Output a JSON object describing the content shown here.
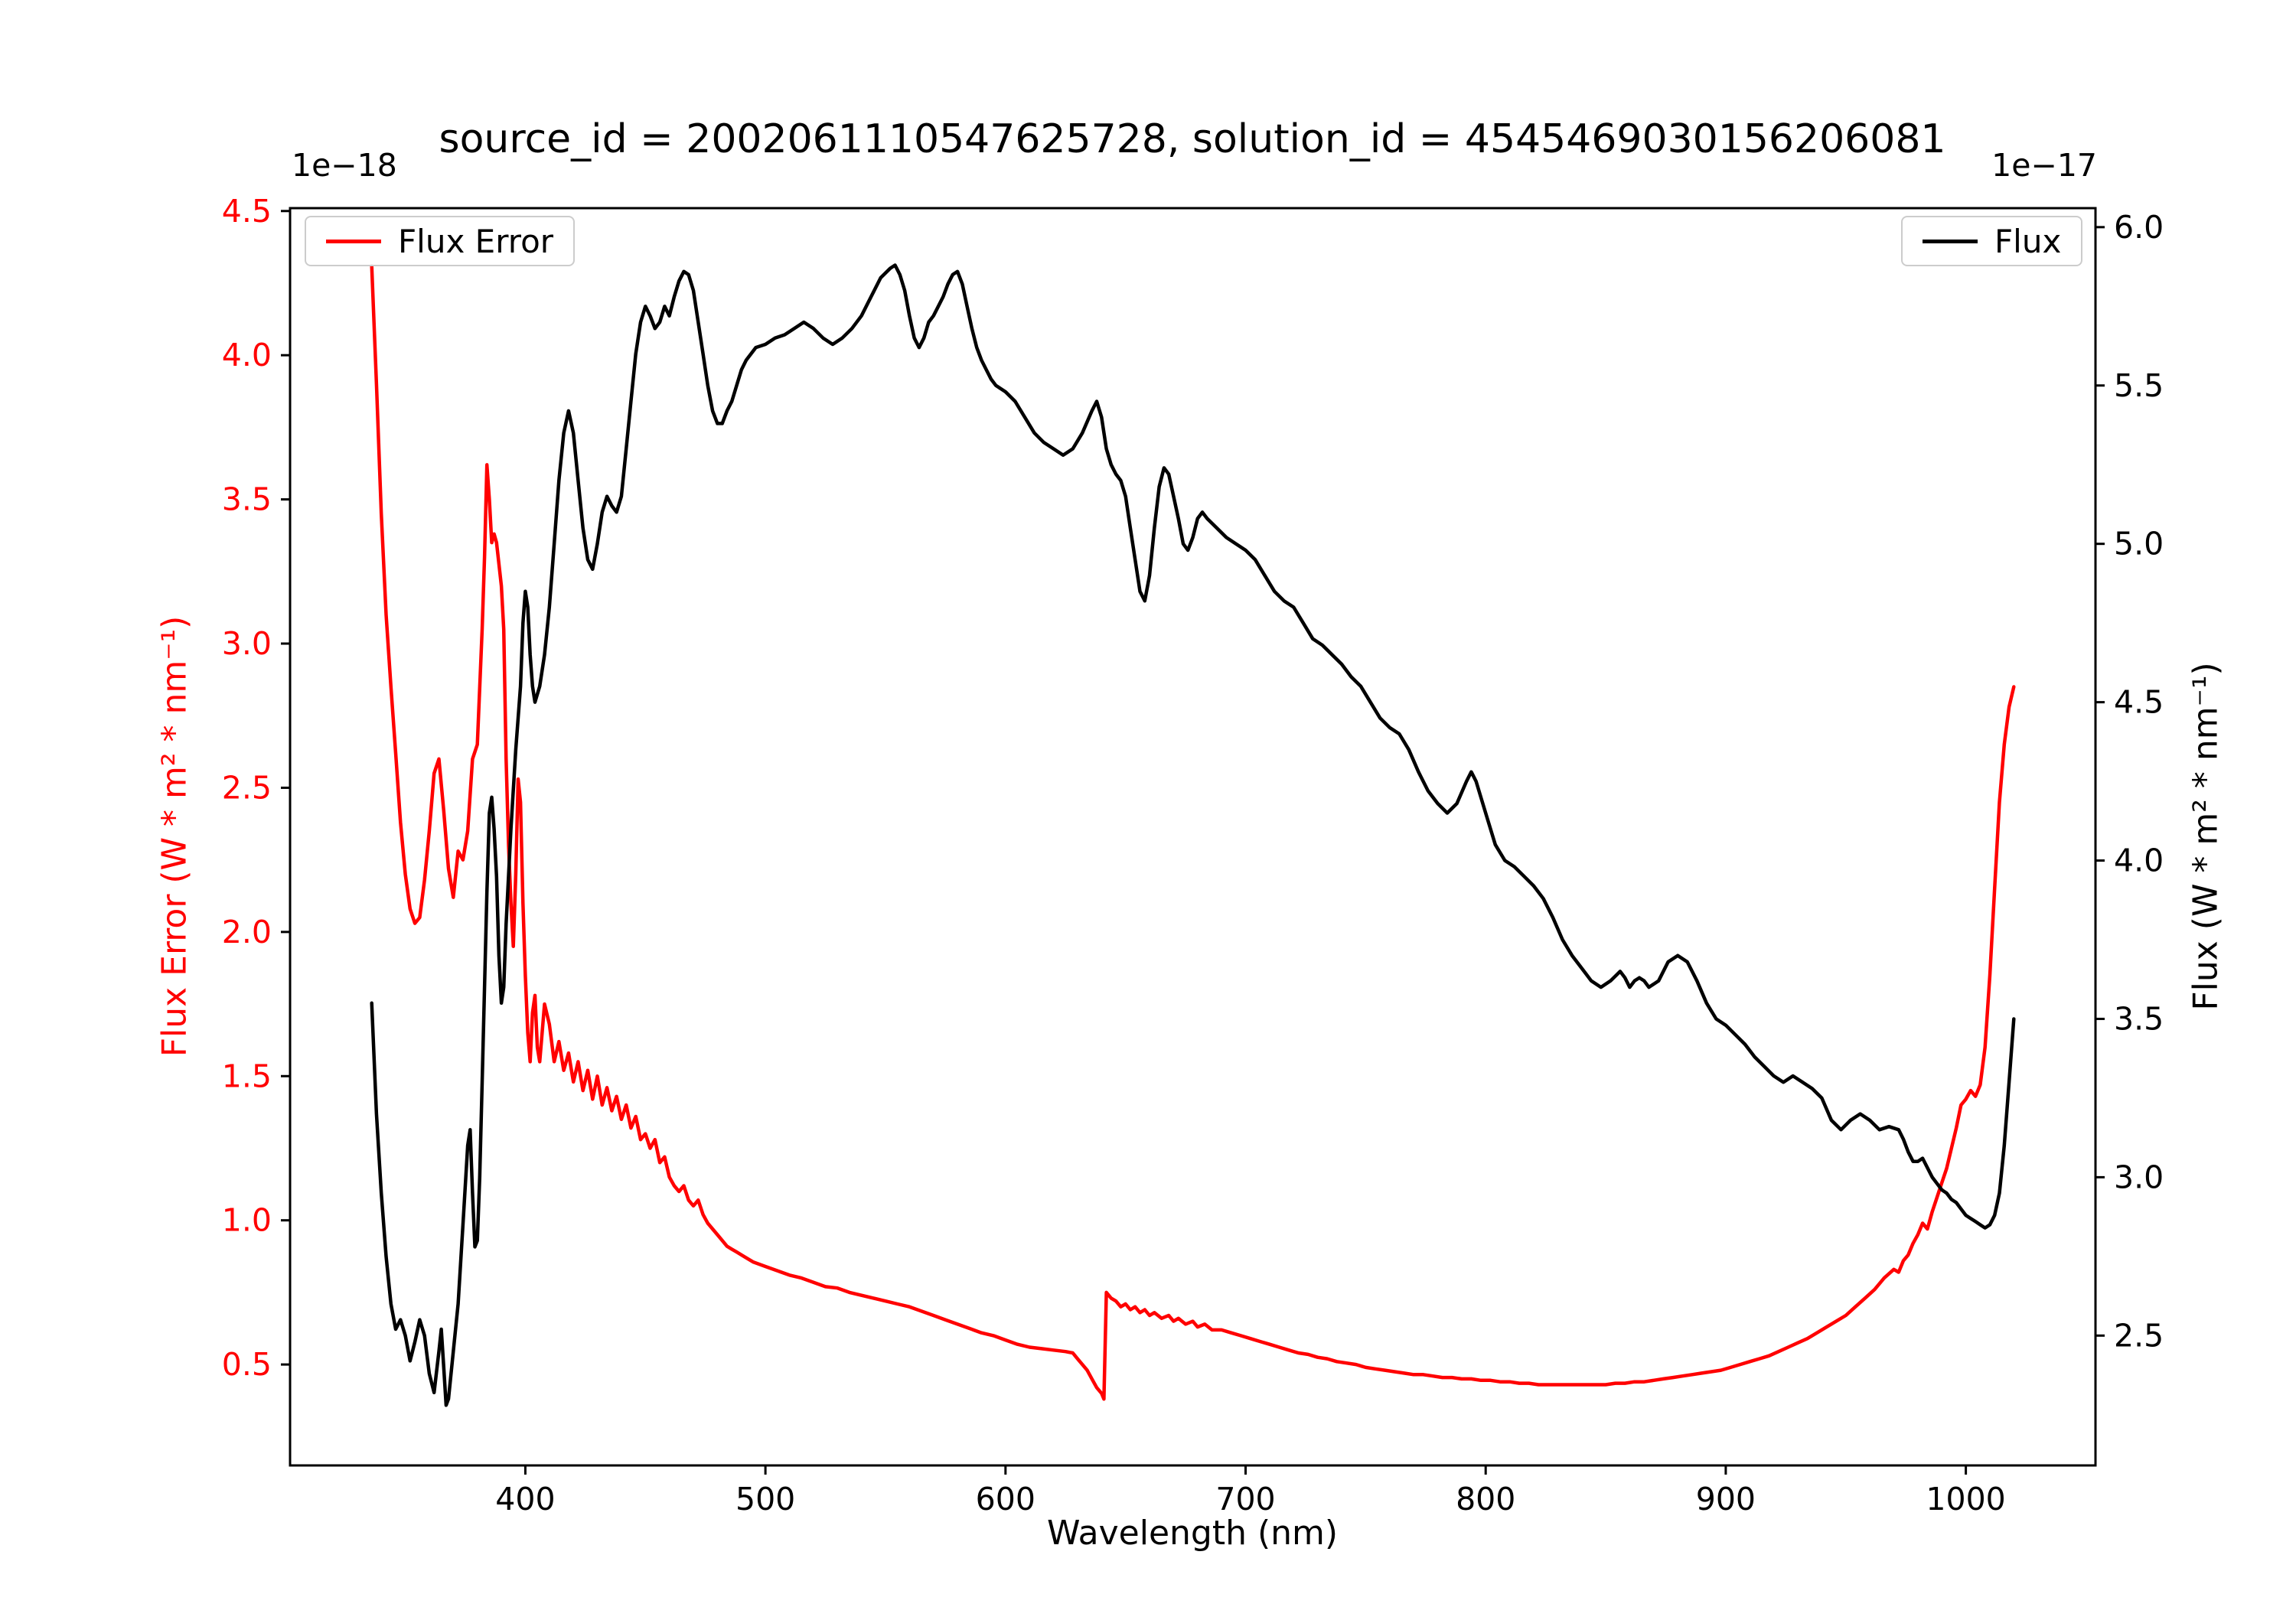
{
  "figure": {
    "title": "source_id = 2002061110547625728, solution_id = 4545469030156206081",
    "xlabel": "Wavelength (nm)",
    "left_axis_label": "Flux Error (W * m² * nm⁻¹)",
    "right_axis_label": "Flux (W * m² * nm⁻¹)",
    "left_offset_text": "1e−18",
    "right_offset_text": "1e−17",
    "legend_flux_error_label": "Flux Error",
    "legend_flux_label": "Flux",
    "colors": {
      "flux_error": "#ff0000",
      "flux": "#000000",
      "frame": "#000000",
      "legend_edge": "#cccccc"
    }
  },
  "chart_data": {
    "type": "line",
    "title": "source_id = 2002061110547625728, solution_id = 4545469030156206081",
    "xlabel": "Wavelength (nm)",
    "grid": false,
    "xlim": [
      302,
      1054
    ],
    "x_ticks": {
      "values": [
        400,
        500,
        600,
        700,
        800,
        900,
        1000
      ],
      "labels": [
        "400",
        "500",
        "600",
        "700",
        "800",
        "900",
        "1000"
      ]
    },
    "left_axis": {
      "label": "Flux Error (W * m² * nm⁻¹)",
      "scale": "1e-18",
      "color": "#ff0000",
      "lim": [
        0.15,
        4.51
      ],
      "ticks": {
        "values": [
          0.5,
          1.0,
          1.5,
          2.0,
          2.5,
          3.0,
          3.5,
          4.0,
          4.5
        ],
        "labels": [
          "0.5",
          "1.0",
          "1.5",
          "2.0",
          "2.5",
          "3.0",
          "3.5",
          "4.0",
          "4.5"
        ]
      }
    },
    "right_axis": {
      "label": "Flux (W * m² * nm⁻¹)",
      "scale": "1e-17",
      "color": "#000000",
      "lim": [
        2.09,
        6.06
      ],
      "ticks": {
        "values": [
          2.5,
          3.0,
          3.5,
          4.0,
          4.5,
          5.0,
          5.5,
          6.0
        ],
        "labels": [
          "2.5",
          "3.0",
          "3.5",
          "4.0",
          "4.5",
          "5.0",
          "5.5",
          "6.0"
        ]
      }
    },
    "series": [
      {
        "name": "Flux Error",
        "axis": "left",
        "color": "#ff0000",
        "legend_position": "upper left",
        "x": [
          336,
          338,
          340,
          342,
          344,
          346,
          348,
          350,
          352,
          354,
          356,
          358,
          360,
          362,
          364,
          366,
          368,
          370,
          372,
          374,
          376,
          378,
          380,
          382,
          383,
          384,
          385,
          386,
          387,
          388,
          390,
          391,
          392,
          393,
          394,
          395,
          396,
          397,
          398,
          399,
          400,
          401,
          402,
          403,
          404,
          405,
          406,
          408,
          410,
          412,
          414,
          416,
          418,
          420,
          422,
          424,
          426,
          428,
          430,
          432,
          434,
          436,
          438,
          440,
          442,
          444,
          446,
          448,
          450,
          452,
          454,
          456,
          458,
          460,
          462,
          464,
          466,
          468,
          470,
          472,
          474,
          476,
          478,
          480,
          482,
          484,
          486,
          488,
          490,
          492,
          495,
          500,
          505,
          510,
          515,
          520,
          525,
          530,
          535,
          540,
          545,
          550,
          555,
          560,
          565,
          570,
          575,
          580,
          585,
          590,
          595,
          600,
          605,
          610,
          615,
          620,
          625,
          628,
          630,
          632,
          634,
          636,
          638,
          640,
          641,
          642,
          644,
          646,
          648,
          650,
          652,
          654,
          656,
          658,
          660,
          662,
          665,
          668,
          670,
          672,
          675,
          678,
          680,
          683,
          686,
          690,
          694,
          698,
          702,
          706,
          710,
          714,
          718,
          722,
          726,
          730,
          734,
          738,
          742,
          746,
          750,
          754,
          758,
          762,
          766,
          770,
          774,
          778,
          782,
          786,
          790,
          794,
          798,
          802,
          806,
          810,
          814,
          818,
          822,
          826,
          830,
          834,
          838,
          842,
          846,
          850,
          854,
          858,
          862,
          866,
          870,
          874,
          878,
          882,
          886,
          890,
          894,
          898,
          902,
          906,
          910,
          914,
          918,
          922,
          926,
          930,
          934,
          938,
          942,
          946,
          950,
          954,
          958,
          962,
          966,
          970,
          972,
          974,
          976,
          978,
          980,
          982,
          984,
          986,
          988,
          990,
          992,
          994,
          996,
          998,
          1000,
          1002,
          1004,
          1006,
          1008,
          1010,
          1012,
          1014,
          1016,
          1018,
          1020
        ],
        "y": [
          4.31,
          3.9,
          3.45,
          3.1,
          2.85,
          2.62,
          2.38,
          2.2,
          2.08,
          2.03,
          2.05,
          2.18,
          2.35,
          2.55,
          2.6,
          2.42,
          2.22,
          2.12,
          2.28,
          2.25,
          2.35,
          2.6,
          2.65,
          3.05,
          3.3,
          3.62,
          3.5,
          3.35,
          3.38,
          3.35,
          3.2,
          3.05,
          2.6,
          2.3,
          2.1,
          1.95,
          2.2,
          2.53,
          2.45,
          2.1,
          1.85,
          1.65,
          1.55,
          1.72,
          1.78,
          1.6,
          1.55,
          1.75,
          1.68,
          1.55,
          1.62,
          1.52,
          1.58,
          1.48,
          1.55,
          1.45,
          1.52,
          1.42,
          1.5,
          1.4,
          1.46,
          1.38,
          1.43,
          1.35,
          1.4,
          1.32,
          1.36,
          1.28,
          1.3,
          1.25,
          1.28,
          1.2,
          1.22,
          1.15,
          1.12,
          1.1,
          1.12,
          1.07,
          1.05,
          1.07,
          1.02,
          0.99,
          0.97,
          0.95,
          0.93,
          0.91,
          0.9,
          0.89,
          0.88,
          0.87,
          0.855,
          0.84,
          0.825,
          0.81,
          0.8,
          0.785,
          0.77,
          0.765,
          0.75,
          0.74,
          0.73,
          0.72,
          0.71,
          0.7,
          0.685,
          0.67,
          0.655,
          0.64,
          0.625,
          0.61,
          0.6,
          0.585,
          0.57,
          0.56,
          0.555,
          0.55,
          0.545,
          0.54,
          0.52,
          0.5,
          0.48,
          0.45,
          0.42,
          0.4,
          0.38,
          0.75,
          0.73,
          0.72,
          0.7,
          0.71,
          0.69,
          0.7,
          0.68,
          0.69,
          0.67,
          0.68,
          0.66,
          0.67,
          0.65,
          0.66,
          0.64,
          0.65,
          0.63,
          0.64,
          0.62,
          0.62,
          0.61,
          0.6,
          0.59,
          0.58,
          0.57,
          0.56,
          0.55,
          0.54,
          0.535,
          0.525,
          0.52,
          0.51,
          0.505,
          0.5,
          0.49,
          0.485,
          0.48,
          0.475,
          0.47,
          0.465,
          0.465,
          0.46,
          0.455,
          0.455,
          0.45,
          0.45,
          0.445,
          0.445,
          0.44,
          0.44,
          0.435,
          0.435,
          0.43,
          0.43,
          0.43,
          0.43,
          0.43,
          0.43,
          0.43,
          0.43,
          0.435,
          0.435,
          0.44,
          0.44,
          0.445,
          0.45,
          0.455,
          0.46,
          0.465,
          0.47,
          0.475,
          0.48,
          0.49,
          0.5,
          0.51,
          0.52,
          0.53,
          0.545,
          0.56,
          0.575,
          0.59,
          0.61,
          0.63,
          0.65,
          0.67,
          0.7,
          0.73,
          0.76,
          0.8,
          0.83,
          0.82,
          0.86,
          0.88,
          0.92,
          0.95,
          0.99,
          0.97,
          1.03,
          1.08,
          1.13,
          1.18,
          1.25,
          1.32,
          1.4,
          1.42,
          1.45,
          1.43,
          1.47,
          1.6,
          1.85,
          2.15,
          2.45,
          2.65,
          2.78,
          2.85
        ]
      },
      {
        "name": "Flux",
        "axis": "right",
        "color": "#000000",
        "legend_position": "upper right",
        "x": [
          336,
          338,
          340,
          342,
          344,
          346,
          348,
          350,
          352,
          354,
          356,
          358,
          360,
          362,
          364,
          365,
          366,
          367,
          368,
          370,
          372,
          374,
          376,
          377,
          378,
          379,
          380,
          381,
          382,
          383,
          384,
          385,
          386,
          387,
          388,
          389,
          390,
          391,
          392,
          394,
          396,
          398,
          399,
          400,
          401,
          402,
          403,
          404,
          406,
          408,
          410,
          412,
          414,
          416,
          418,
          420,
          422,
          424,
          426,
          428,
          430,
          432,
          434,
          436,
          438,
          440,
          442,
          444,
          446,
          448,
          450,
          452,
          454,
          456,
          458,
          460,
          462,
          464,
          466,
          468,
          470,
          472,
          474,
          476,
          478,
          480,
          482,
          484,
          486,
          488,
          490,
          492,
          494,
          496,
          500,
          504,
          508,
          512,
          516,
          520,
          524,
          528,
          532,
          536,
          540,
          544,
          548,
          552,
          554,
          556,
          558,
          560,
          562,
          564,
          566,
          568,
          570,
          572,
          574,
          576,
          578,
          580,
          582,
          584,
          586,
          588,
          590,
          592,
          594,
          596,
          600,
          604,
          608,
          612,
          616,
          620,
          624,
          628,
          632,
          636,
          638,
          640,
          642,
          644,
          646,
          648,
          650,
          652,
          654,
          656,
          658,
          660,
          662,
          664,
          666,
          668,
          670,
          672,
          674,
          676,
          678,
          680,
          682,
          684,
          688,
          692,
          696,
          700,
          704,
          708,
          712,
          716,
          720,
          724,
          728,
          732,
          736,
          740,
          744,
          748,
          752,
          756,
          760,
          764,
          768,
          772,
          776,
          780,
          784,
          788,
          792,
          794,
          796,
          800,
          804,
          808,
          812,
          816,
          820,
          824,
          828,
          832,
          836,
          840,
          844,
          848,
          852,
          856,
          858,
          860,
          862,
          864,
          866,
          868,
          872,
          876,
          880,
          884,
          888,
          892,
          896,
          900,
          904,
          908,
          912,
          916,
          920,
          924,
          928,
          932,
          936,
          940,
          944,
          948,
          952,
          956,
          960,
          964,
          968,
          972,
          974,
          976,
          978,
          980,
          982,
          984,
          986,
          988,
          990,
          992,
          994,
          996,
          998,
          1000,
          1002,
          1004,
          1006,
          1008,
          1010,
          1012,
          1014,
          1016,
          1018,
          1020
        ],
        "y": [
          3.55,
          3.2,
          2.95,
          2.75,
          2.6,
          2.52,
          2.55,
          2.5,
          2.42,
          2.48,
          2.55,
          2.5,
          2.38,
          2.32,
          2.45,
          2.52,
          2.4,
          2.28,
          2.3,
          2.45,
          2.6,
          2.85,
          3.1,
          3.15,
          2.95,
          2.78,
          2.8,
          3.0,
          3.3,
          3.6,
          3.9,
          4.15,
          4.2,
          4.1,
          3.95,
          3.7,
          3.55,
          3.6,
          3.8,
          4.1,
          4.35,
          4.55,
          4.75,
          4.85,
          4.8,
          4.65,
          4.55,
          4.5,
          4.55,
          4.65,
          4.8,
          5.0,
          5.2,
          5.35,
          5.42,
          5.35,
          5.2,
          5.05,
          4.95,
          4.92,
          5.0,
          5.1,
          5.15,
          5.12,
          5.1,
          5.15,
          5.3,
          5.45,
          5.6,
          5.7,
          5.75,
          5.72,
          5.68,
          5.7,
          5.75,
          5.72,
          5.78,
          5.83,
          5.86,
          5.85,
          5.8,
          5.7,
          5.6,
          5.5,
          5.42,
          5.38,
          5.38,
          5.42,
          5.45,
          5.5,
          5.55,
          5.58,
          5.6,
          5.62,
          5.63,
          5.65,
          5.66,
          5.68,
          5.7,
          5.68,
          5.65,
          5.63,
          5.65,
          5.68,
          5.72,
          5.78,
          5.84,
          5.87,
          5.88,
          5.85,
          5.8,
          5.72,
          5.65,
          5.62,
          5.65,
          5.7,
          5.72,
          5.75,
          5.78,
          5.82,
          5.85,
          5.86,
          5.82,
          5.75,
          5.68,
          5.62,
          5.58,
          5.55,
          5.52,
          5.5,
          5.48,
          5.45,
          5.4,
          5.35,
          5.32,
          5.3,
          5.28,
          5.3,
          5.35,
          5.42,
          5.45,
          5.4,
          5.3,
          5.25,
          5.22,
          5.2,
          5.15,
          5.05,
          4.95,
          4.85,
          4.82,
          4.9,
          5.05,
          5.18,
          5.24,
          5.22,
          5.15,
          5.08,
          5.0,
          4.98,
          5.02,
          5.08,
          5.1,
          5.08,
          5.05,
          5.02,
          5.0,
          4.98,
          4.95,
          4.9,
          4.85,
          4.82,
          4.8,
          4.75,
          4.7,
          4.68,
          4.65,
          4.62,
          4.58,
          4.55,
          4.5,
          4.45,
          4.42,
          4.4,
          4.35,
          4.28,
          4.22,
          4.18,
          4.15,
          4.18,
          4.25,
          4.28,
          4.25,
          4.15,
          4.05,
          4.0,
          3.98,
          3.95,
          3.92,
          3.88,
          3.82,
          3.75,
          3.7,
          3.66,
          3.62,
          3.6,
          3.62,
          3.65,
          3.63,
          3.6,
          3.62,
          3.63,
          3.62,
          3.6,
          3.62,
          3.68,
          3.7,
          3.68,
          3.62,
          3.55,
          3.5,
          3.48,
          3.45,
          3.42,
          3.38,
          3.35,
          3.32,
          3.3,
          3.32,
          3.3,
          3.28,
          3.25,
          3.18,
          3.15,
          3.18,
          3.2,
          3.18,
          3.15,
          3.16,
          3.15,
          3.12,
          3.08,
          3.05,
          3.05,
          3.06,
          3.03,
          3.0,
          2.98,
          2.96,
          2.95,
          2.93,
          2.92,
          2.9,
          2.88,
          2.87,
          2.86,
          2.85,
          2.84,
          2.85,
          2.88,
          2.95,
          3.1,
          3.3,
          3.5
        ]
      }
    ]
  }
}
